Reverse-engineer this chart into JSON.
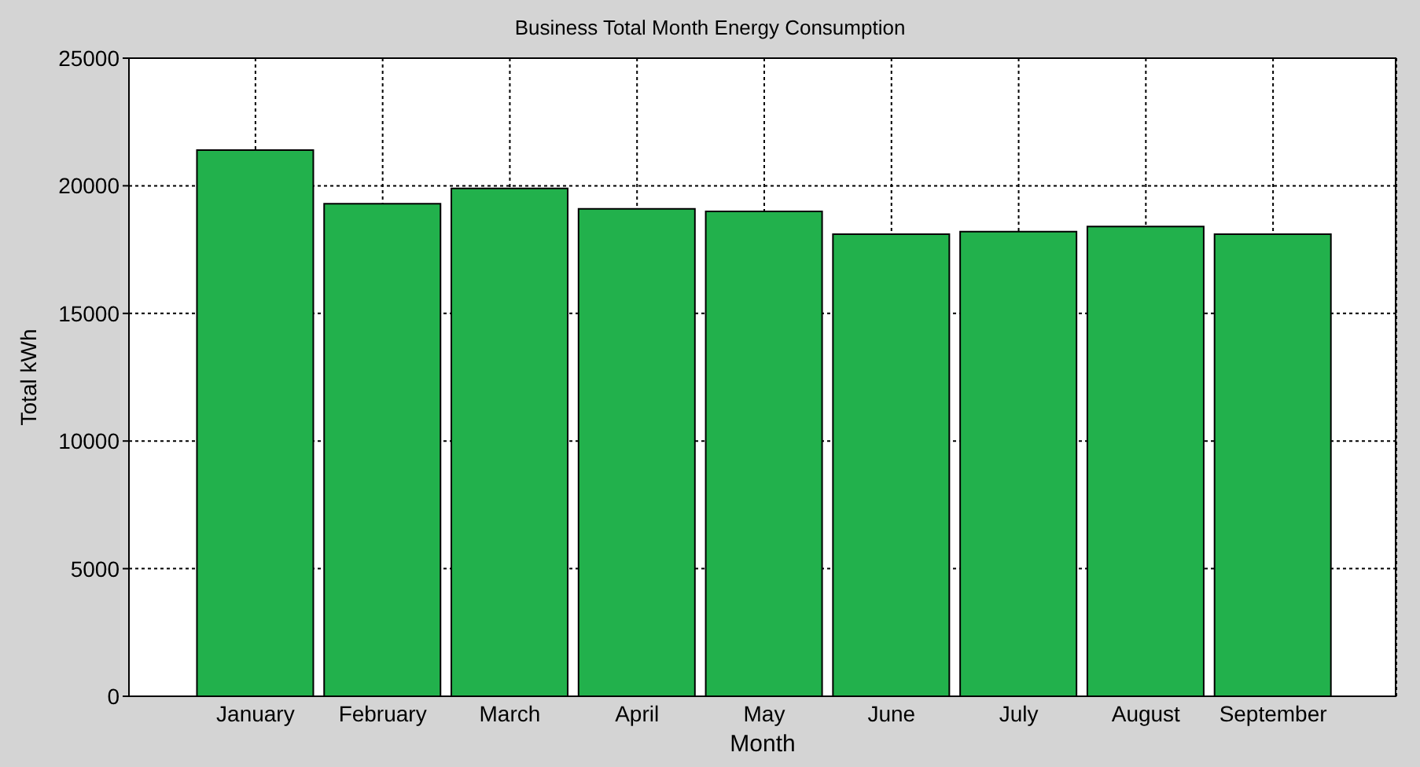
{
  "chart_data": {
    "type": "bar",
    "title": "Business Total Month Energy Consumption",
    "xlabel": "Month",
    "ylabel": "Total kWh",
    "categories": [
      "January",
      "February",
      "March",
      "April",
      "May",
      "June",
      "July",
      "August",
      "September"
    ],
    "values": [
      21400,
      19300,
      19900,
      19100,
      19000,
      18100,
      18200,
      18400,
      18100
    ],
    "color": "#22b14c",
    "ylim": [
      0,
      25000
    ],
    "yticks": [
      0,
      5000,
      10000,
      15000,
      20000,
      25000
    ],
    "grid": true
  }
}
